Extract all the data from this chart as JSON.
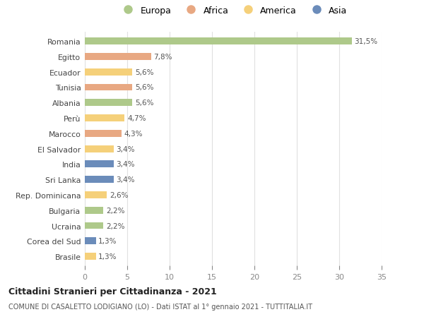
{
  "countries": [
    "Romania",
    "Egitto",
    "Ecuador",
    "Tunisia",
    "Albania",
    "Perù",
    "Marocco",
    "El Salvador",
    "India",
    "Sri Lanka",
    "Rep. Dominicana",
    "Bulgaria",
    "Ucraina",
    "Corea del Sud",
    "Brasile"
  ],
  "values": [
    31.5,
    7.8,
    5.6,
    5.6,
    5.6,
    4.7,
    4.3,
    3.4,
    3.4,
    3.4,
    2.6,
    2.2,
    2.2,
    1.3,
    1.3
  ],
  "labels": [
    "31,5%",
    "7,8%",
    "5,6%",
    "5,6%",
    "5,6%",
    "4,7%",
    "4,3%",
    "3,4%",
    "3,4%",
    "3,4%",
    "2,6%",
    "2,2%",
    "2,2%",
    "1,3%",
    "1,3%"
  ],
  "continents": [
    "Europa",
    "Africa",
    "America",
    "Africa",
    "Europa",
    "America",
    "Africa",
    "America",
    "Asia",
    "Asia",
    "America",
    "Europa",
    "Europa",
    "Asia",
    "America"
  ],
  "colors": {
    "Europa": "#aec98a",
    "Africa": "#e8a882",
    "America": "#f5d07a",
    "Asia": "#6b8cba"
  },
  "legend_order": [
    "Europa",
    "Africa",
    "America",
    "Asia"
  ],
  "xlim": [
    0,
    35
  ],
  "xticks": [
    0,
    5,
    10,
    15,
    20,
    25,
    30,
    35
  ],
  "title": "Cittadini Stranieri per Cittadinanza - 2021",
  "subtitle": "COMUNE DI CASALETTO LODIGIANO (LO) - Dati ISTAT al 1° gennaio 2021 - TUTTITALIA.IT",
  "background_color": "#ffffff",
  "grid_color": "#e0e0e0",
  "bar_height": 0.45
}
